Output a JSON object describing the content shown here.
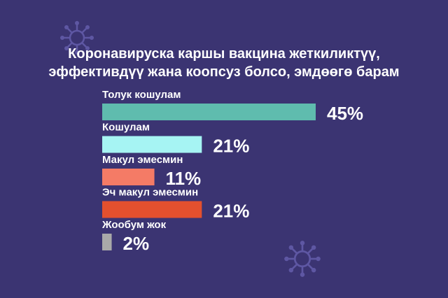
{
  "title_lines": [
    "Коронавируска каршы вакцина жеткиликтүү,",
    "эффективдүү жана коопсуз болсо, эмдөөгө барам"
  ],
  "chart_data": {
    "type": "bar",
    "orientation": "horizontal",
    "categories": [
      "Толук кошулам",
      "Кошулам",
      "Макул эмесмин",
      "Эч макул эмесмин",
      "Жообум жок"
    ],
    "values": [
      45,
      21,
      11,
      21,
      2
    ],
    "value_labels": [
      "45%",
      "21%",
      "11%",
      "21%",
      "2%"
    ],
    "bar_colors": [
      "#5fbcae",
      "#a6f4f3",
      "#f47b66",
      "#e4502e",
      "#a9a9a9"
    ],
    "grid": false,
    "legend": "none"
  },
  "colors": {
    "background": "#3b3472",
    "text": "#ffffff",
    "virus": "#5e57a3"
  }
}
